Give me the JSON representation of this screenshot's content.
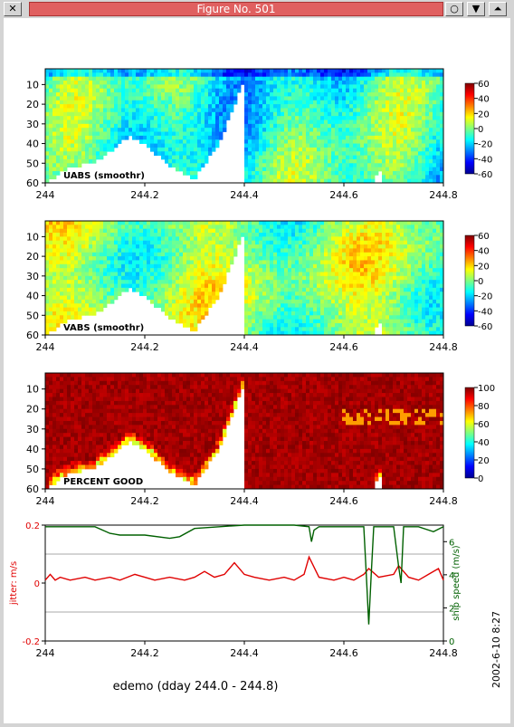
{
  "window": {
    "title": "Figure No. 501",
    "close_glyph": "✕",
    "circle_glyph": "○",
    "down_glyph": "▼",
    "up_glyph": "⏶"
  },
  "figure": {
    "xlabel": "edemo (dday 244.0 - 244.8)",
    "timestamp": "2002-6-10   8:27"
  },
  "chart_data": [
    {
      "type": "heatmap",
      "label": "UABS  (smoothr)",
      "x_range": [
        244.0,
        244.8
      ],
      "x_ticks": [
        "244",
        "244.2",
        "244.4",
        "244.6",
        "244.8"
      ],
      "y_ticks": [
        "10",
        "20",
        "30",
        "40",
        "50",
        "60"
      ],
      "ylim": [
        60,
        2
      ],
      "colorbar": {
        "min": -60,
        "max": 60,
        "ticks": [
          "60",
          "40",
          "20",
          "0",
          "-20",
          "-40",
          "-60"
        ]
      },
      "colormap": "jet",
      "bottom_depth": {
        "dday": [
          244.0,
          244.05,
          244.1,
          244.13,
          244.17,
          244.2,
          244.25,
          244.3,
          244.35,
          244.4,
          244.402,
          244.55,
          244.66,
          244.67,
          244.68,
          244.8
        ],
        "depth": [
          60,
          52,
          50,
          44,
          36,
          40,
          52,
          58,
          40,
          7,
          60,
          60,
          60,
          53,
          60,
          60
        ]
      }
    },
    {
      "type": "heatmap",
      "label": "VABS  (smoothr)",
      "x_range": [
        244.0,
        244.8
      ],
      "x_ticks": [
        "244",
        "244.2",
        "244.4",
        "244.6",
        "244.8"
      ],
      "y_ticks": [
        "10",
        "20",
        "30",
        "40",
        "50",
        "60"
      ],
      "ylim": [
        60,
        2
      ],
      "colorbar": {
        "min": -60,
        "max": 60,
        "ticks": [
          "60",
          "40",
          "20",
          "0",
          "-20",
          "-40",
          "-60"
        ]
      },
      "colormap": "jet",
      "bottom_depth": {
        "dday": [
          244.0,
          244.05,
          244.1,
          244.13,
          244.17,
          244.2,
          244.25,
          244.3,
          244.35,
          244.4,
          244.402,
          244.55,
          244.66,
          244.67,
          244.68,
          244.8
        ],
        "depth": [
          60,
          52,
          50,
          44,
          36,
          40,
          52,
          58,
          40,
          7,
          60,
          60,
          60,
          53,
          60,
          60
        ]
      }
    },
    {
      "type": "heatmap",
      "label": "PERCENT GOOD",
      "x_range": [
        244.0,
        244.8
      ],
      "x_ticks": [
        "244",
        "244.2",
        "244.4",
        "244.6",
        "244.8"
      ],
      "y_ticks": [
        "10",
        "20",
        "30",
        "40",
        "50",
        "60"
      ],
      "ylim": [
        60,
        2
      ],
      "colorbar": {
        "min": 0,
        "max": 100,
        "ticks": [
          "100",
          "80",
          "60",
          "40",
          "20",
          "0"
        ]
      },
      "colormap": "jet",
      "bottom_depth": {
        "dday": [
          244.0,
          244.05,
          244.1,
          244.13,
          244.17,
          244.2,
          244.25,
          244.3,
          244.35,
          244.4,
          244.402,
          244.55,
          244.66,
          244.67,
          244.68,
          244.8
        ],
        "depth": [
          60,
          52,
          50,
          44,
          36,
          40,
          52,
          58,
          40,
          7,
          60,
          60,
          60,
          53,
          60,
          60
        ]
      }
    },
    {
      "type": "line",
      "x_range": [
        244.0,
        244.8
      ],
      "x_ticks": [
        "244",
        "244.2",
        "244.4",
        "244.6",
        "244.8"
      ],
      "ylabel": "jitter: m/s",
      "ylim": [
        -0.2,
        0.2
      ],
      "y_ticks": [
        "0.2",
        "0",
        "-0.2"
      ],
      "y2label": "ship speed (m/s)",
      "y2lim": [
        0,
        7
      ],
      "y2_ticks": [
        "6",
        "4",
        "2",
        "0"
      ],
      "grid": "horizontal",
      "series": [
        {
          "axis": "left",
          "color": "#e00000",
          "x": [
            244.0,
            244.01,
            244.02,
            244.03,
            244.05,
            244.08,
            244.1,
            244.13,
            244.15,
            244.18,
            244.2,
            244.22,
            244.25,
            244.28,
            244.3,
            244.32,
            244.34,
            244.36,
            244.38,
            244.4,
            244.42,
            244.45,
            244.48,
            244.5,
            244.52,
            244.53,
            244.55,
            244.58,
            244.6,
            244.62,
            244.64,
            244.65,
            244.67,
            244.7,
            244.71,
            244.73,
            244.75,
            244.77,
            244.79,
            244.8
          ],
          "y": [
            0.01,
            0.03,
            0.01,
            0.02,
            0.01,
            0.02,
            0.01,
            0.02,
            0.01,
            0.03,
            0.02,
            0.01,
            0.02,
            0.01,
            0.02,
            0.04,
            0.02,
            0.03,
            0.07,
            0.03,
            0.02,
            0.01,
            0.02,
            0.01,
            0.03,
            0.09,
            0.02,
            0.01,
            0.02,
            0.01,
            0.03,
            0.05,
            0.02,
            0.03,
            0.06,
            0.02,
            0.01,
            0.03,
            0.05,
            0.01
          ]
        },
        {
          "axis": "right",
          "color": "#006000",
          "x": [
            244.0,
            244.1,
            244.13,
            244.15,
            244.2,
            244.25,
            244.27,
            244.3,
            244.35,
            244.4,
            244.5,
            244.53,
            244.535,
            244.54,
            244.55,
            244.6,
            244.64,
            244.645,
            244.65,
            244.655,
            244.66,
            244.7,
            244.71,
            244.715,
            244.72,
            244.75,
            244.78,
            244.8
          ],
          "y": [
            6.9,
            6.9,
            6.5,
            6.4,
            6.4,
            6.2,
            6.3,
            6.8,
            6.9,
            7.0,
            7.0,
            6.9,
            6.0,
            6.7,
            6.9,
            6.9,
            6.9,
            4.0,
            1.0,
            4.0,
            6.9,
            6.9,
            4.5,
            3.5,
            6.9,
            6.9,
            6.6,
            6.9
          ]
        }
      ]
    }
  ]
}
